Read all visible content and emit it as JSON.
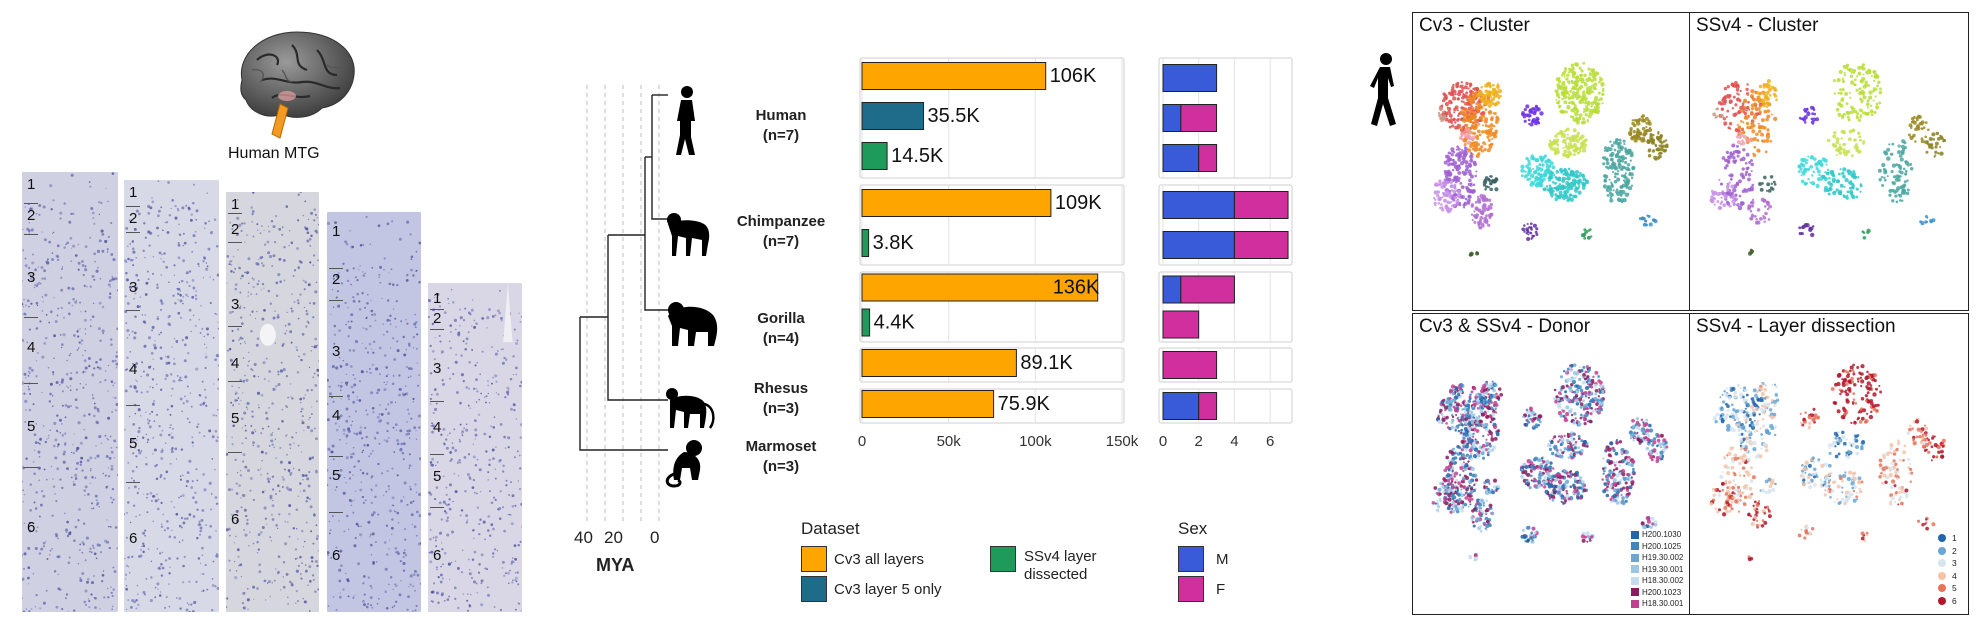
{
  "brain": {
    "label": "Human MTG"
  },
  "histology_layers": [
    [
      "1",
      "2",
      "3",
      "4",
      "5",
      "6"
    ],
    [
      "1",
      "2",
      "3",
      "4",
      "5",
      "6"
    ],
    [
      "1",
      "2",
      "3",
      "4",
      "5",
      "6"
    ],
    [
      "1",
      "2",
      "3",
      "4",
      "5",
      "6"
    ],
    [
      "1",
      "2",
      "3",
      "4",
      "5",
      "6"
    ]
  ],
  "tree": {
    "axis_ticks": [
      "40",
      "20",
      "0"
    ],
    "axis_label": "MYA"
  },
  "species": [
    {
      "name": "Human",
      "n": "(n=7)"
    },
    {
      "name": "Chimpanzee",
      "n": "(n=7)"
    },
    {
      "name": "Gorilla",
      "n": "(n=4)"
    },
    {
      "name": "Rhesus",
      "n": "(n=3)"
    },
    {
      "name": "Marmoset",
      "n": "(n=3)"
    }
  ],
  "chart_data": [
    {
      "type": "bar",
      "orientation": "horizontal",
      "categories": [
        "Human",
        "Chimpanzee",
        "Gorilla",
        "Rhesus",
        "Marmoset"
      ],
      "series": [
        {
          "name": "Cv3 all layers",
          "values": [
            106000,
            109000,
            136000,
            89100,
            75900
          ],
          "labels": [
            "106K",
            "109K",
            "136K",
            "89.1K",
            "75.9K"
          ]
        },
        {
          "name": "Cv3 layer 5 only",
          "values": [
            35500,
            null,
            null,
            null,
            null
          ],
          "labels": [
            "35.5K",
            "",
            "",
            "",
            ""
          ]
        },
        {
          "name": "SSv4 layer dissected",
          "values": [
            14500,
            3800,
            4400,
            null,
            null
          ],
          "labels": [
            "14.5K",
            "3.8K",
            "4.4K",
            "",
            ""
          ]
        }
      ],
      "xlim": [
        0,
        150000
      ],
      "xticks": [
        "0",
        "50k",
        "100k",
        "150k"
      ],
      "legend_title": "Dataset",
      "legend_placement": "bottom"
    },
    {
      "type": "bar",
      "orientation": "horizontal",
      "stacked": true,
      "rows": [
        {
          "species": "Human",
          "dataset": "Cv3 all layers",
          "M": 3,
          "F": 0
        },
        {
          "species": "Human",
          "dataset": "Cv3 layer 5 only",
          "M": 1,
          "F": 2
        },
        {
          "species": "Human",
          "dataset": "SSv4 layer dissected",
          "M": 2,
          "F": 1
        },
        {
          "species": "Chimpanzee",
          "dataset": "Cv3 all layers",
          "M": 4,
          "F": 3
        },
        {
          "species": "Chimpanzee",
          "dataset": "SSv4 layer dissected",
          "M": 4,
          "F": 3
        },
        {
          "species": "Gorilla",
          "dataset": "Cv3 all layers",
          "M": 1,
          "F": 3
        },
        {
          "species": "Gorilla",
          "dataset": "SSv4 layer dissected",
          "M": 0,
          "F": 2
        },
        {
          "species": "Rhesus",
          "dataset": "Cv3 all layers",
          "M": 0,
          "F": 3
        },
        {
          "species": "Marmoset",
          "dataset": "Cv3 all layers",
          "M": 2,
          "F": 1
        }
      ],
      "series": [
        {
          "name": "M"
        },
        {
          "name": "F"
        }
      ],
      "xlim": [
        0,
        7
      ],
      "xticks": [
        "0",
        "2",
        "4",
        "6"
      ],
      "legend_title": "Sex",
      "legend_placement": "bottom"
    }
  ],
  "dataset_legend": {
    "title": "Dataset",
    "items": [
      "Cv3 all layers",
      "Cv3 layer 5 only",
      "SSv4 layer dissected"
    ]
  },
  "sex_legend": {
    "title": "Sex",
    "items": [
      "M",
      "F"
    ]
  },
  "colors": {
    "cv3_all": "#FFA500",
    "cv3_l5": "#1F6B8A",
    "ssv4": "#1E9B5A",
    "male": "#3A5BD9",
    "female": "#D12F9E"
  },
  "umap_panels": [
    {
      "title": "Cv3 - Cluster"
    },
    {
      "title": "SSv4 - Cluster"
    },
    {
      "title": "Cv3 & SSv4 - Donor"
    },
    {
      "title": "SSv4 - Layer dissection"
    }
  ],
  "donor_legend": {
    "items": [
      "H200.1030",
      "H200.1025",
      "H19.30.002",
      "H19.30.001",
      "H18.30.002",
      "H200.1023",
      "H18.30.001"
    ],
    "colors": [
      "#2166ac",
      "#3f86bf",
      "#6aa6d3",
      "#9cc6e4",
      "#c4ddef",
      "#8b1a5e",
      "#c2408f"
    ]
  },
  "layer_legend": {
    "items": [
      "1",
      "2",
      "3",
      "4",
      "5",
      "6"
    ],
    "colors": [
      "#2166ac",
      "#6aa6d3",
      "#d6e4ee",
      "#f4c3a8",
      "#e6735a",
      "#b2182b"
    ]
  }
}
